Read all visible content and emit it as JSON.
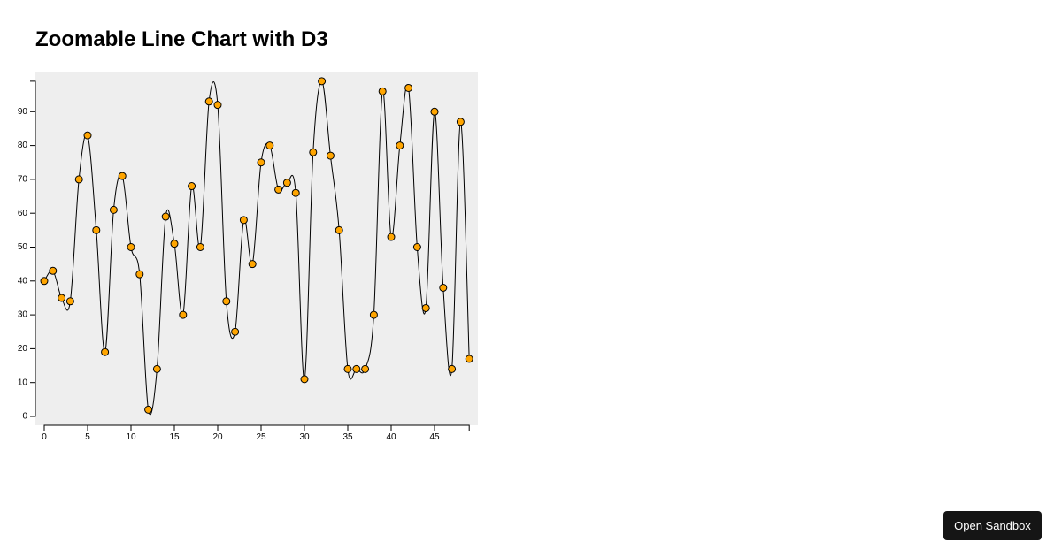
{
  "page": {
    "title": "Zoomable Line Chart with D3"
  },
  "sandbox_button": {
    "label": "Open Sandbox"
  },
  "chart_data": {
    "type": "line",
    "title": "",
    "xlabel": "",
    "ylabel": "",
    "xlim": [
      0,
      49
    ],
    "ylim": [
      0,
      99
    ],
    "xticks": [
      0,
      5,
      10,
      15,
      20,
      25,
      30,
      35,
      40,
      45
    ],
    "yticks": [
      0,
      10,
      20,
      30,
      40,
      50,
      60,
      70,
      80,
      90
    ],
    "grid": false,
    "curve": "smooth",
    "markers": true,
    "colors": {
      "background": "#eeeeee",
      "line": "#000000",
      "marker_fill": "#ffa500",
      "marker_stroke": "#000000"
    },
    "x": [
      0,
      1,
      2,
      3,
      4,
      5,
      6,
      7,
      8,
      9,
      10,
      11,
      12,
      13,
      14,
      15,
      16,
      17,
      18,
      19,
      20,
      21,
      22,
      23,
      24,
      25,
      26,
      27,
      28,
      29,
      30,
      31,
      32,
      33,
      34,
      35,
      36,
      37,
      38,
      39,
      40,
      41,
      42,
      43,
      44,
      45,
      46,
      47,
      48,
      49
    ],
    "y": [
      40,
      43,
      35,
      34,
      70,
      83,
      55,
      19,
      61,
      71,
      50,
      42,
      2,
      14,
      59,
      51,
      30,
      68,
      50,
      93,
      92,
      34,
      25,
      58,
      45,
      75,
      80,
      67,
      69,
      66,
      11,
      78,
      99,
      77,
      55,
      14,
      14,
      14,
      30,
      96,
      53,
      80,
      97,
      50,
      32,
      90,
      38,
      14,
      87,
      17
    ]
  }
}
